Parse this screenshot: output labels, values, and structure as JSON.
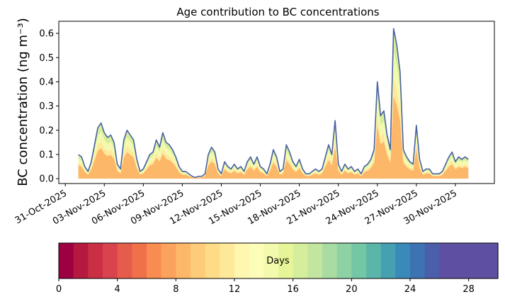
{
  "chart_data": [
    {
      "type": "area",
      "title": "Age contribution to BC concentrations",
      "ylabel": "BC concentration (ng m⁻³)",
      "xlabel": "",
      "x_axis": "date",
      "xlim": [
        "2025-10-30T12:00",
        "2025-12-03T00:00"
      ],
      "ylim": [
        -0.02,
        0.65
      ],
      "x_ticks": [
        "2025-10-31",
        "2025-11-03",
        "2025-11-06",
        "2025-11-09",
        "2025-11-12",
        "2025-11-15",
        "2025-11-18",
        "2025-11-21",
        "2025-11-24",
        "2025-11-27",
        "2025-11-30"
      ],
      "x_tick_labels": [
        "31-Oct-2025",
        "03-Nov-2025",
        "06-Nov-2025",
        "09-Nov-2025",
        "12-Nov-2025",
        "15-Nov-2025",
        "18-Nov-2025",
        "21-Nov-2025",
        "24-Nov-2025",
        "27-Nov-2025",
        "30-Nov-2025"
      ],
      "y_ticks": [
        0.0,
        0.1,
        0.2,
        0.3,
        0.4,
        0.5,
        0.6
      ],
      "y_tick_labels": [
        "0.0",
        "0.1",
        "0.2",
        "0.3",
        "0.4",
        "0.5",
        "0.6"
      ],
      "grid": false,
      "total_series": {
        "color": "#4a61a3",
        "points": [
          [
            "2025-11-01T00:00",
            0.1
          ],
          [
            "2025-11-01T06:00",
            0.09
          ],
          [
            "2025-11-01T12:00",
            0.05
          ],
          [
            "2025-11-01T18:00",
            0.03
          ],
          [
            "2025-11-02T00:00",
            0.07
          ],
          [
            "2025-11-02T06:00",
            0.14
          ],
          [
            "2025-11-02T12:00",
            0.21
          ],
          [
            "2025-11-02T18:00",
            0.23
          ],
          [
            "2025-11-03T00:00",
            0.19
          ],
          [
            "2025-11-03T06:00",
            0.17
          ],
          [
            "2025-11-03T12:00",
            0.18
          ],
          [
            "2025-11-03T18:00",
            0.15
          ],
          [
            "2025-11-04T00:00",
            0.06
          ],
          [
            "2025-11-04T06:00",
            0.04
          ],
          [
            "2025-11-04T12:00",
            0.16
          ],
          [
            "2025-11-04T18:00",
            0.2
          ],
          [
            "2025-11-05T00:00",
            0.18
          ],
          [
            "2025-11-05T06:00",
            0.16
          ],
          [
            "2025-11-05T12:00",
            0.08
          ],
          [
            "2025-11-05T18:00",
            0.03
          ],
          [
            "2025-11-06T00:00",
            0.04
          ],
          [
            "2025-11-06T06:00",
            0.07
          ],
          [
            "2025-11-06T12:00",
            0.1
          ],
          [
            "2025-11-06T18:00",
            0.11
          ],
          [
            "2025-11-07T00:00",
            0.16
          ],
          [
            "2025-11-07T06:00",
            0.13
          ],
          [
            "2025-11-07T12:00",
            0.19
          ],
          [
            "2025-11-07T18:00",
            0.15
          ],
          [
            "2025-11-08T00:00",
            0.14
          ],
          [
            "2025-11-08T06:00",
            0.12
          ],
          [
            "2025-11-08T12:00",
            0.09
          ],
          [
            "2025-11-08T18:00",
            0.05
          ],
          [
            "2025-11-09T00:00",
            0.03
          ],
          [
            "2025-11-09T06:00",
            0.03
          ],
          [
            "2025-11-09T12:00",
            0.02
          ],
          [
            "2025-11-09T18:00",
            0.01
          ],
          [
            "2025-11-10T00:00",
            0.005
          ],
          [
            "2025-11-10T06:00",
            0.01
          ],
          [
            "2025-11-10T12:00",
            0.01
          ],
          [
            "2025-11-10T18:00",
            0.02
          ],
          [
            "2025-11-11T00:00",
            0.1
          ],
          [
            "2025-11-11T06:00",
            0.13
          ],
          [
            "2025-11-11T12:00",
            0.11
          ],
          [
            "2025-11-11T18:00",
            0.04
          ],
          [
            "2025-11-12T00:00",
            0.02
          ],
          [
            "2025-11-12T06:00",
            0.07
          ],
          [
            "2025-11-12T12:00",
            0.05
          ],
          [
            "2025-11-12T18:00",
            0.04
          ],
          [
            "2025-11-13T00:00",
            0.06
          ],
          [
            "2025-11-13T06:00",
            0.04
          ],
          [
            "2025-11-13T12:00",
            0.05
          ],
          [
            "2025-11-13T18:00",
            0.03
          ],
          [
            "2025-11-14T00:00",
            0.07
          ],
          [
            "2025-11-14T06:00",
            0.09
          ],
          [
            "2025-11-14T12:00",
            0.06
          ],
          [
            "2025-11-14T18:00",
            0.09
          ],
          [
            "2025-11-15T00:00",
            0.05
          ],
          [
            "2025-11-15T06:00",
            0.04
          ],
          [
            "2025-11-15T12:00",
            0.02
          ],
          [
            "2025-11-15T18:00",
            0.06
          ],
          [
            "2025-11-16T00:00",
            0.12
          ],
          [
            "2025-11-16T06:00",
            0.09
          ],
          [
            "2025-11-16T12:00",
            0.03
          ],
          [
            "2025-11-16T18:00",
            0.04
          ],
          [
            "2025-11-17T00:00",
            0.14
          ],
          [
            "2025-11-17T06:00",
            0.11
          ],
          [
            "2025-11-17T12:00",
            0.07
          ],
          [
            "2025-11-17T18:00",
            0.05
          ],
          [
            "2025-11-18T00:00",
            0.08
          ],
          [
            "2025-11-18T06:00",
            0.04
          ],
          [
            "2025-11-18T12:00",
            0.02
          ],
          [
            "2025-11-18T18:00",
            0.02
          ],
          [
            "2025-11-19T00:00",
            0.03
          ],
          [
            "2025-11-19T06:00",
            0.04
          ],
          [
            "2025-11-19T12:00",
            0.03
          ],
          [
            "2025-11-19T18:00",
            0.04
          ],
          [
            "2025-11-20T00:00",
            0.09
          ],
          [
            "2025-11-20T06:00",
            0.14
          ],
          [
            "2025-11-20T12:00",
            0.1
          ],
          [
            "2025-11-20T18:00",
            0.24
          ],
          [
            "2025-11-21T00:00",
            0.06
          ],
          [
            "2025-11-21T06:00",
            0.03
          ],
          [
            "2025-11-21T12:00",
            0.06
          ],
          [
            "2025-11-21T18:00",
            0.04
          ],
          [
            "2025-11-22T00:00",
            0.05
          ],
          [
            "2025-11-22T06:00",
            0.03
          ],
          [
            "2025-11-22T12:00",
            0.04
          ],
          [
            "2025-11-22T18:00",
            0.02
          ],
          [
            "2025-11-23T00:00",
            0.05
          ],
          [
            "2025-11-23T06:00",
            0.06
          ],
          [
            "2025-11-23T12:00",
            0.08
          ],
          [
            "2025-11-23T18:00",
            0.12
          ],
          [
            "2025-11-24T00:00",
            0.4
          ],
          [
            "2025-11-24T06:00",
            0.26
          ],
          [
            "2025-11-24T12:00",
            0.28
          ],
          [
            "2025-11-24T18:00",
            0.18
          ],
          [
            "2025-11-25T00:00",
            0.12
          ],
          [
            "2025-11-25T06:00",
            0.62
          ],
          [
            "2025-11-25T12:00",
            0.55
          ],
          [
            "2025-11-25T18:00",
            0.44
          ],
          [
            "2025-11-26T00:00",
            0.12
          ],
          [
            "2025-11-26T06:00",
            0.09
          ],
          [
            "2025-11-26T12:00",
            0.07
          ],
          [
            "2025-11-26T18:00",
            0.06
          ],
          [
            "2025-11-27T00:00",
            0.22
          ],
          [
            "2025-11-27T06:00",
            0.08
          ],
          [
            "2025-11-27T12:00",
            0.03
          ],
          [
            "2025-11-27T18:00",
            0.04
          ],
          [
            "2025-11-28T00:00",
            0.04
          ],
          [
            "2025-11-28T06:00",
            0.02
          ],
          [
            "2025-11-28T12:00",
            0.02
          ],
          [
            "2025-11-28T18:00",
            0.02
          ],
          [
            "2025-11-29T00:00",
            0.03
          ],
          [
            "2025-11-29T06:00",
            0.06
          ],
          [
            "2025-11-29T12:00",
            0.09
          ],
          [
            "2025-11-29T18:00",
            0.11
          ],
          [
            "2025-11-30T00:00",
            0.07
          ],
          [
            "2025-11-30T06:00",
            0.09
          ],
          [
            "2025-11-30T12:00",
            0.08
          ],
          [
            "2025-11-30T18:00",
            0.09
          ],
          [
            "2025-12-01T00:00",
            0.08
          ]
        ]
      }
    },
    {
      "type": "heatmap",
      "colorbar_label": "Days",
      "range": [
        0,
        30
      ],
      "bins": 30,
      "ticks": [
        0,
        4,
        8,
        12,
        16,
        20,
        24,
        28
      ],
      "tick_labels": [
        "0",
        "4",
        "8",
        "12",
        "16",
        "20",
        "24",
        "28"
      ],
      "colors": [
        "#9e0142",
        "#b5193f",
        "#cb2f44",
        "#d8434e",
        "#e55c4b",
        "#f07049",
        "#f88c51",
        "#fba35c",
        "#fdb768",
        "#fecb79",
        "#fedc87",
        "#fee99a",
        "#fff6b0",
        "#fbfdb8",
        "#f3faad",
        "#e6f598",
        "#d5ee9b",
        "#c2e6a0",
        "#a8dca2",
        "#8ed1a4",
        "#74c7a5",
        "#5bb6a9",
        "#45a0b1",
        "#3989b9",
        "#3d73b2",
        "#4a5ea9",
        "#5e4fa2",
        "#5e4fa2",
        "#5e4fa2",
        "#5e4fa2"
      ]
    }
  ]
}
